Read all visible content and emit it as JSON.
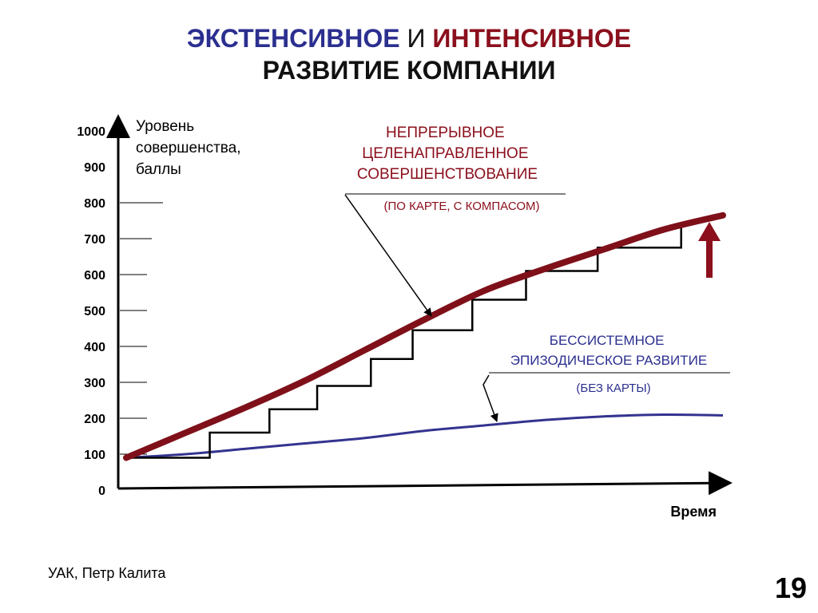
{
  "header": {
    "title_part1": "ЭКСТЕНСИВНОЕ",
    "title_part2": "И",
    "title_part3": "ИНТЕНСИВНОЕ",
    "title_line2": "РАЗВИТИЕ КОМПАНИИ"
  },
  "colors": {
    "intensive": "#7f1019",
    "extensive": "#33338f",
    "steps": "#000000",
    "axis": "#000000"
  },
  "annotations": {
    "intensive_title": [
      "НЕПРЕРЫВНОЕ",
      "ЦЕЛЕНАПРАВЛЕННОЕ",
      "СОВЕРШЕНСТВОВАНИЕ"
    ],
    "intensive_note": "(ПО КАРТЕ, С КОМПАСОМ)",
    "extensive_title": [
      "БЕССИСТЕМНОЕ",
      "ЭПИЗОДИЧЕСКОЕ РАЗВИТИЕ"
    ],
    "extensive_note": "(БЕЗ КАРТЫ)"
  },
  "chart_data": {
    "type": "line",
    "ylabel": [
      "Уровень",
      "совершенства,",
      "баллы"
    ],
    "xlabel": "Время",
    "ylim": [
      0,
      1000
    ],
    "xlim": [
      0,
      100
    ],
    "yticks": [
      0,
      100,
      200,
      300,
      400,
      500,
      600,
      700,
      800,
      900,
      1000
    ],
    "ytick_labels": [
      "0",
      "100",
      "200",
      "300",
      "400",
      "500",
      "600",
      "700",
      "800",
      "900",
      "1000"
    ],
    "series": [
      {
        "name": "НЕПРЕРЫВНОЕ ЦЕЛЕНАПРАВЛЕННОЕ СОВЕРШЕНСТВОВАНИЕ",
        "x": [
          0,
          10,
          20,
          30,
          40,
          50,
          60,
          70,
          80,
          90,
          100
        ],
        "y": [
          90,
          160,
          230,
          305,
          390,
          475,
          555,
          615,
          670,
          725,
          765
        ]
      },
      {
        "name": "БЕССИСТЕМНОЕ ЭПИЗОДИЧЕСКОЕ РАЗВИТИЕ",
        "x": [
          0,
          10,
          20,
          30,
          40,
          50,
          60,
          70,
          80,
          90,
          100
        ],
        "y": [
          90,
          100,
          115,
          130,
          145,
          165,
          180,
          195,
          205,
          210,
          208
        ]
      },
      {
        "name": "steps",
        "x": [
          0,
          14,
          14,
          24,
          24,
          32,
          32,
          41,
          41,
          48,
          48,
          58,
          58,
          67,
          67,
          79,
          79,
          93,
          93
        ],
        "y": [
          90,
          90,
          160,
          160,
          225,
          225,
          290,
          290,
          365,
          365,
          445,
          445,
          530,
          530,
          610,
          610,
          675,
          675,
          735
        ]
      }
    ]
  },
  "footer": {
    "author": "УАК, Петр  Калита",
    "page": "19"
  }
}
